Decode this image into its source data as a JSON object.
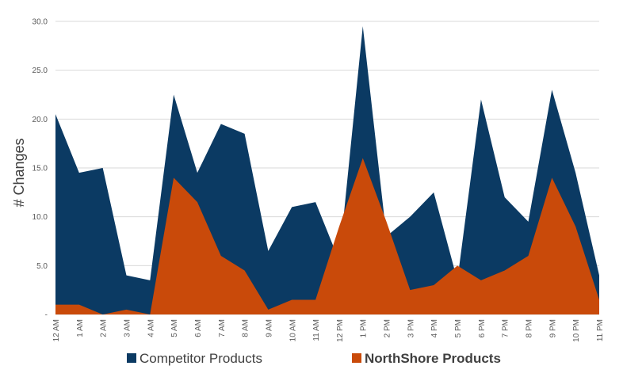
{
  "chart_data": {
    "type": "area",
    "title": "",
    "xlabel": "",
    "ylabel": "# Changes",
    "ylim": [
      0,
      30
    ],
    "yticks": [
      "",
      "5.0",
      "10.0",
      "15.0",
      "20.0",
      "25.0",
      "30.0"
    ],
    "categories": [
      "12 AM",
      "1 AM",
      "2 AM",
      "3 AM",
      "4 AM",
      "5 AM",
      "6 AM",
      "7 AM",
      "8 AM",
      "9 AM",
      "10 AM",
      "11 AM",
      "12 PM",
      "1 PM",
      "2 PM",
      "3 PM",
      "4 PM",
      "5 PM",
      "6 PM",
      "7 PM",
      "8 PM",
      "9 PM",
      "10 PM",
      "11 PM"
    ],
    "series": [
      {
        "name": "Competitor Products",
        "color": "#0b3a63",
        "values": [
          20.5,
          14.5,
          15.0,
          4.0,
          3.5,
          22.5,
          14.5,
          19.5,
          18.5,
          6.5,
          11.0,
          11.5,
          5.5,
          29.5,
          8.0,
          10.0,
          12.5,
          3.5,
          22.0,
          12.0,
          9.5,
          23.0,
          14.5,
          4.0
        ]
      },
      {
        "name": "NorthShore Products",
        "color": "#c94a0a",
        "values": [
          1.0,
          1.0,
          0.0,
          0.5,
          0.0,
          14.0,
          11.5,
          6.0,
          4.5,
          0.5,
          1.5,
          1.5,
          9.0,
          16.0,
          9.5,
          2.5,
          3.0,
          5.0,
          3.5,
          4.5,
          6.0,
          14.0,
          9.0,
          1.5
        ]
      }
    ],
    "grid": true,
    "legend_position": "bottom"
  }
}
